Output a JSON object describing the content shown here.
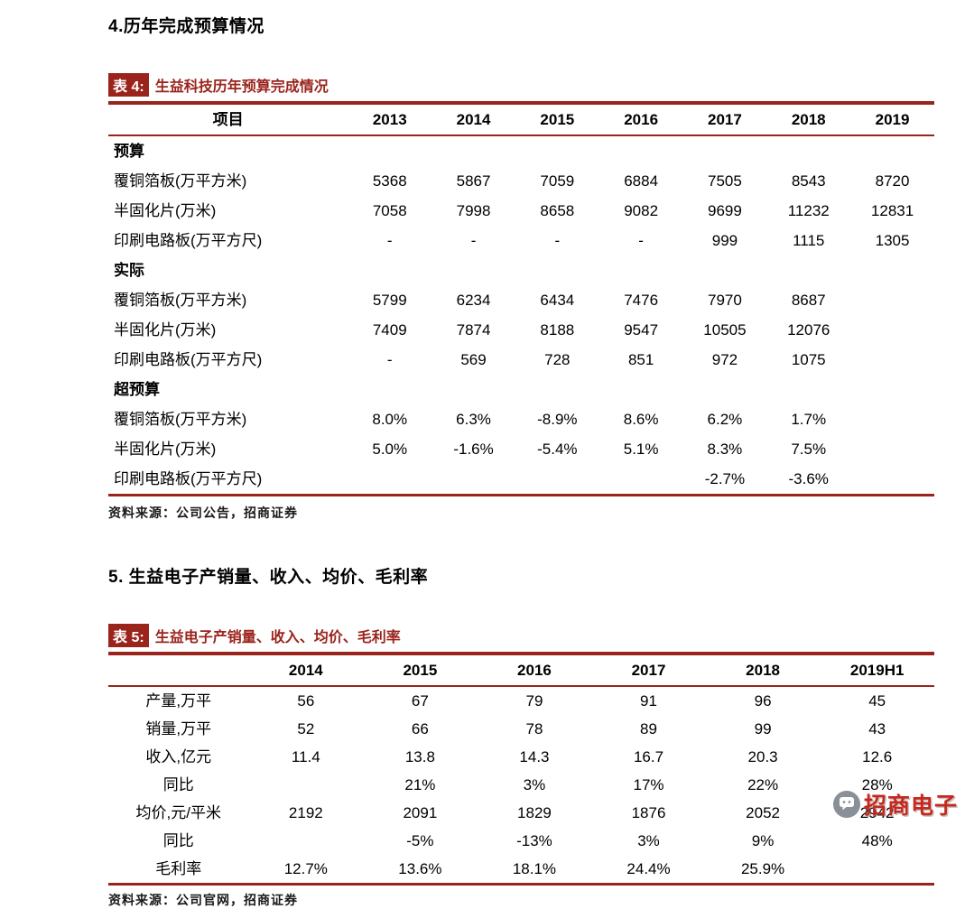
{
  "colors": {
    "accent": "#9A241C",
    "watermark_red": "#C7281E",
    "icon_gray": "#8A9097"
  },
  "section4": {
    "heading": "4.历年完成预算情况"
  },
  "table4": {
    "caption_label": "表 4:",
    "caption_title": "生益科技历年预算完成情况",
    "columns": [
      "项目",
      "2013",
      "2014",
      "2015",
      "2016",
      "2017",
      "2018",
      "2019"
    ],
    "rows": [
      {
        "section": true,
        "label": "预算"
      },
      {
        "label": "覆铜箔板(万平方米)",
        "values": [
          "5368",
          "5867",
          "7059",
          "6884",
          "7505",
          "8543",
          "8720"
        ]
      },
      {
        "label": "半固化片(万米)",
        "values": [
          "7058",
          "7998",
          "8658",
          "9082",
          "9699",
          "11232",
          "12831"
        ]
      },
      {
        "label": "印刷电路板(万平方尺)",
        "values": [
          "-",
          "-",
          "-",
          "-",
          "999",
          "1115",
          "1305"
        ]
      },
      {
        "section": true,
        "label": "实际"
      },
      {
        "label": "覆铜箔板(万平方米)",
        "values": [
          "5799",
          "6234",
          "6434",
          "7476",
          "7970",
          "8687",
          ""
        ]
      },
      {
        "label": "半固化片(万米)",
        "values": [
          "7409",
          "7874",
          "8188",
          "9547",
          "10505",
          "12076",
          ""
        ]
      },
      {
        "label": "印刷电路板(万平方尺)",
        "values": [
          "-",
          "569",
          "728",
          "851",
          "972",
          "1075",
          ""
        ]
      },
      {
        "section": true,
        "label": "超预算"
      },
      {
        "label": "覆铜箔板(万平方米)",
        "values": [
          "8.0%",
          "6.3%",
          "-8.9%",
          "8.6%",
          "6.2%",
          "1.7%",
          ""
        ]
      },
      {
        "label": "半固化片(万米)",
        "values": [
          "5.0%",
          "-1.6%",
          "-5.4%",
          "5.1%",
          "8.3%",
          "7.5%",
          ""
        ]
      },
      {
        "label": "印刷电路板(万平方尺)",
        "values": [
          "",
          "",
          "",
          "",
          "-2.7%",
          "-3.6%",
          ""
        ]
      }
    ],
    "source": "资料来源：公司公告，招商证券"
  },
  "section5": {
    "heading": "5. 生益电子产销量、收入、均价、毛利率"
  },
  "table5": {
    "caption_label": "表 5:",
    "caption_title": "生益电子产销量、收入、均价、毛利率",
    "columns": [
      "",
      "2014",
      "2015",
      "2016",
      "2017",
      "2018",
      "2019H1"
    ],
    "rows": [
      {
        "label": "产量,万平",
        "values": [
          "56",
          "67",
          "79",
          "91",
          "96",
          "45"
        ]
      },
      {
        "label": "销量,万平",
        "values": [
          "52",
          "66",
          "78",
          "89",
          "99",
          "43"
        ]
      },
      {
        "label": "收入,亿元",
        "values": [
          "11.4",
          "13.8",
          "14.3",
          "16.7",
          "20.3",
          "12.6"
        ]
      },
      {
        "label": "同比",
        "values": [
          "",
          "21%",
          "3%",
          "17%",
          "22%",
          "28%"
        ]
      },
      {
        "label": "均价,元/平米",
        "values": [
          "2192",
          "2091",
          "1829",
          "1876",
          "2052",
          "2942"
        ]
      },
      {
        "label": "同比",
        "values": [
          "",
          "-5%",
          "-13%",
          "3%",
          "9%",
          "48%"
        ]
      },
      {
        "label": "毛利率",
        "values": [
          "12.7%",
          "13.6%",
          "18.1%",
          "24.4%",
          "25.9%",
          ""
        ]
      }
    ],
    "source": "资料来源：公司官网，招商证券"
  },
  "watermark": {
    "label": "招商电子"
  }
}
